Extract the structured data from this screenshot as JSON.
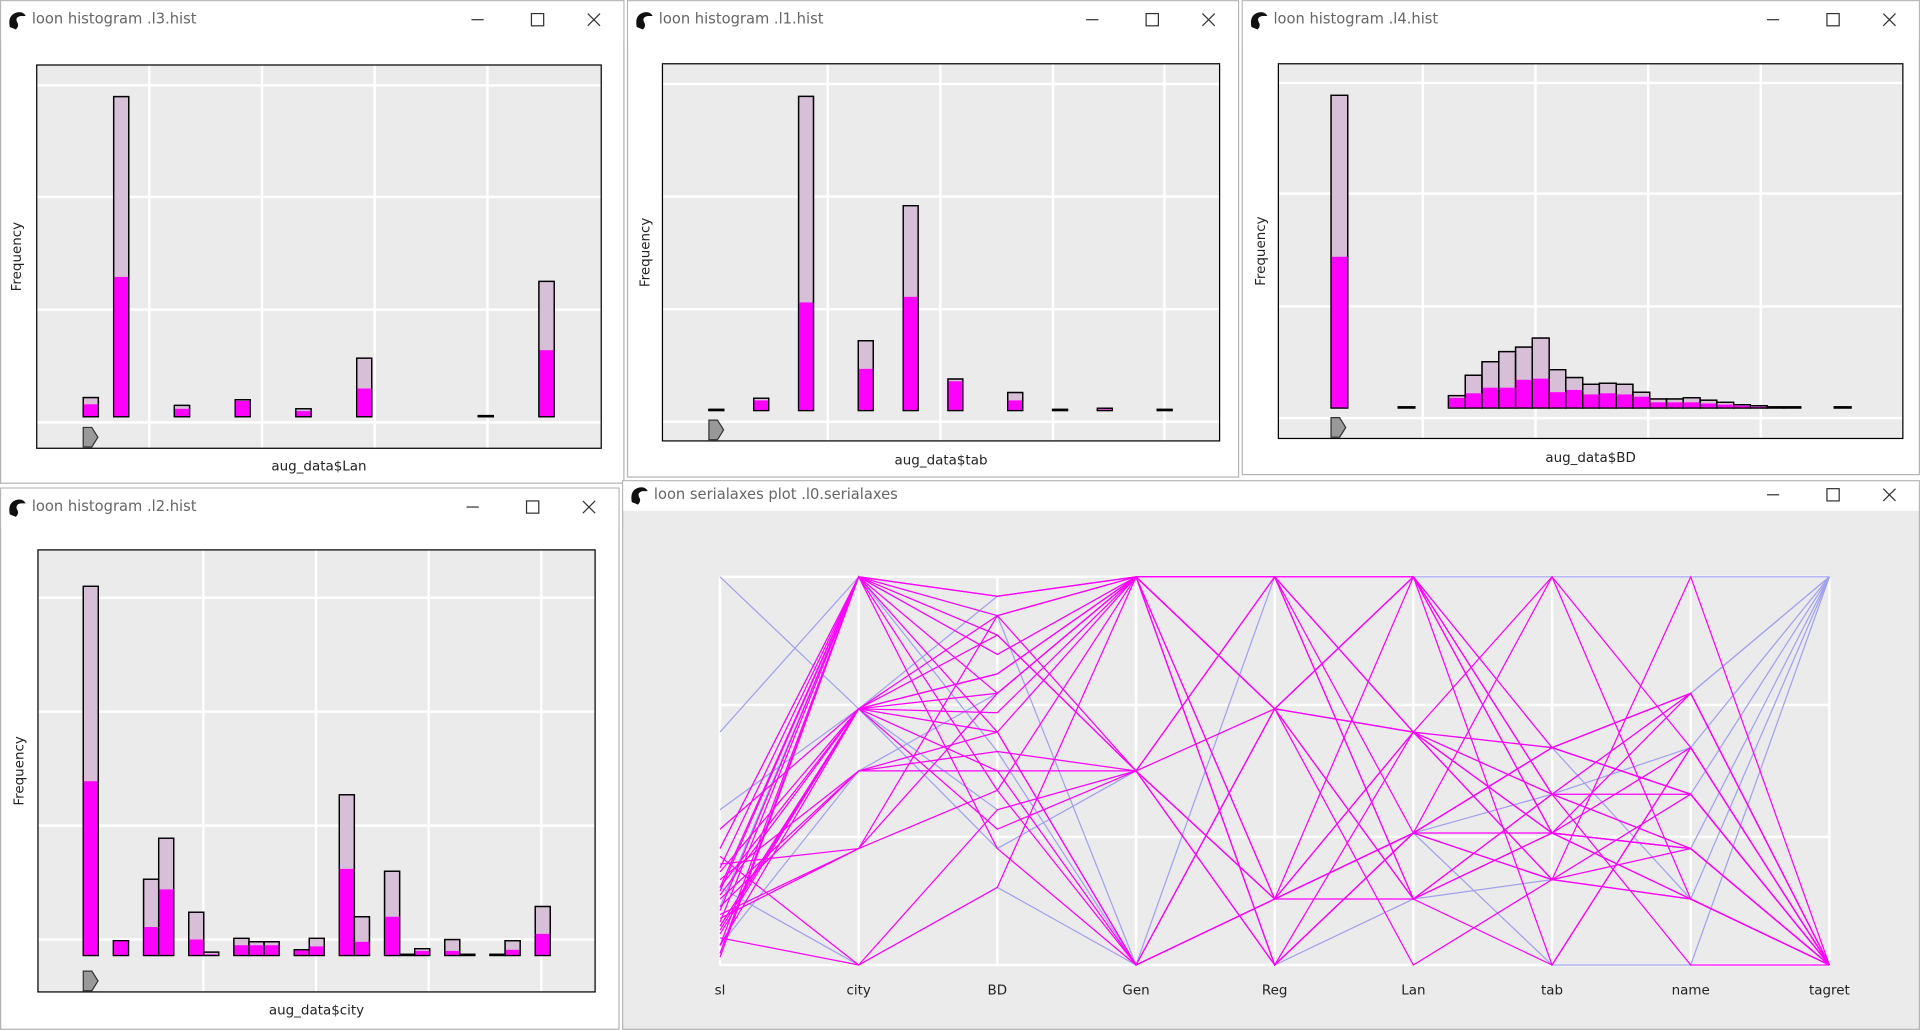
{
  "windows": [
    {
      "title": "loon histogram .l3.hist",
      "chart_data": {
        "type": "histogram",
        "xlabel": "aug_data$Lan",
        "ylabel": "Frequency",
        "bins": [
          0,
          1,
          2,
          3,
          4,
          5,
          6,
          7,
          8,
          9,
          10,
          11,
          12,
          13,
          14,
          15,
          16,
          17,
          18,
          19,
          20,
          21,
          22,
          23,
          24,
          25,
          26,
          27,
          28,
          29,
          30,
          31
        ],
        "series": [
          {
            "color": "#d8bfd8",
            "values": [
              17,
              0,
              284,
              0,
              0,
              0,
              10,
              0,
              0,
              0,
              15,
              0,
              0,
              0,
              7,
              0,
              0,
              0,
              52,
              0,
              0,
              0,
              0,
              0,
              0,
              0,
              1,
              0,
              0,
              0,
              120
            ]
          },
          {
            "color": "#ff00ff",
            "values": [
              11,
              0,
              124,
              0,
              0,
              0,
              7,
              0,
              0,
              0,
              14,
              0,
              0,
              0,
              5,
              0,
              0,
              0,
              25,
              0,
              0,
              0,
              0,
              0,
              0,
              0,
              0,
              0,
              0,
              0,
              59
            ]
          }
        ],
        "xlim": [
          -3.06,
          34.1
        ],
        "xticks": [
          4.35,
          11.77,
          19.19,
          26.61
        ],
        "ylim": [
          -28,
          312
        ],
        "yticks": [
          -5,
          95,
          195,
          294
        ],
        "grid": true
      }
    },
    {
      "title": "loon histogram .l1.hist",
      "chart_data": {
        "type": "histogram",
        "xlabel": "aug_data$tab",
        "ylabel": "Frequency",
        "bins": [
          0,
          1,
          2,
          3,
          4,
          5,
          6,
          7,
          8,
          9,
          10,
          11,
          12,
          13,
          14,
          15,
          16,
          17,
          18,
          19,
          20,
          21,
          22,
          23,
          24,
          25,
          26,
          27,
          28,
          29,
          30,
          31
        ],
        "series": [
          {
            "color": "#d8bfd8",
            "values": [
              1,
              0,
              0,
              11,
              0,
              0,
              279,
              0,
              0,
              0,
              62,
              0,
              0,
              182,
              0,
              0,
              28,
              0,
              0,
              0,
              16,
              0,
              0,
              1,
              0,
              0,
              2,
              0,
              0,
              0,
              1
            ]
          },
          {
            "color": "#ff00ff",
            "values": [
              0,
              0,
              0,
              9,
              0,
              0,
              96,
              0,
              0,
              0,
              37,
              0,
              0,
              101,
              0,
              0,
              26,
              0,
              0,
              0,
              9,
              0,
              0,
              0,
              0,
              0,
              1,
              0,
              0,
              0,
              0
            ]
          }
        ],
        "xlim": [
          -3.11,
          34.18
        ],
        "xticks": [
          7.95,
          15.49,
          23.03,
          30.49
        ],
        "ylim": [
          -27,
          308
        ],
        "yticks": [
          -10,
          90,
          190,
          290
        ],
        "grid": true
      }
    },
    {
      "title": "loon histogram .l4.hist",
      "chart_data": {
        "type": "histogram",
        "xlabel": "aug_data$BD",
        "ylabel": "Frequency",
        "bins": [
          0,
          1,
          2,
          3,
          4,
          5,
          6,
          7,
          8,
          9,
          10,
          11,
          12,
          13,
          14,
          15,
          16,
          17,
          18,
          19,
          20,
          21,
          22,
          23,
          24,
          25,
          26,
          27,
          28,
          29,
          30,
          31
        ],
        "series": [
          {
            "color": "#d8bfd8",
            "values": [
              277,
              0,
              0,
              0,
              1,
              0,
              0,
              11,
              29,
              41,
              50,
              54,
              62,
              34,
              27,
              21,
              22,
              21,
              14,
              8,
              8,
              9,
              7,
              5,
              3,
              2,
              1,
              1,
              0,
              0,
              1
            ]
          },
          {
            "color": "#ff00ff",
            "values": [
              134,
              0,
              0,
              0,
              0,
              0,
              0,
              9,
              13,
              18,
              18,
              25,
              26,
              14,
              16,
              12,
              13,
              12,
              10,
              5,
              5,
              5,
              4,
              3,
              2,
              1,
              1,
              0,
              0,
              0,
              0
            ]
          }
        ],
        "xlim": [
          -3.14,
          34.09
        ],
        "xticks": [
          5.47,
          12.19,
          18.91,
          25.62
        ],
        "ylim": [
          -27,
          305
        ],
        "yticks": [
          -9,
          90,
          190,
          288
        ],
        "grid": true
      }
    },
    {
      "title": "loon histogram .l2.hist",
      "chart_data": {
        "type": "histogram",
        "xlabel": "aug_data$city",
        "ylabel": "Frequency",
        "bins": [
          0,
          1,
          2,
          3,
          4,
          5,
          6,
          7,
          8,
          9,
          10,
          11,
          12,
          13,
          14,
          15,
          16,
          17,
          18,
          19,
          20,
          21,
          22,
          23,
          24,
          25,
          26,
          27,
          28,
          29,
          30,
          31
        ],
        "series": [
          {
            "color": "#d8bfd8",
            "values": [
              324,
              0,
              13,
              0,
              67,
              103,
              0,
              38,
              3,
              0,
              15,
              12,
              12,
              0,
              5,
              15,
              0,
              141,
              34,
              0,
              74,
              1,
              6,
              0,
              14,
              1,
              0,
              1,
              13,
              0,
              43
            ]
          },
          {
            "color": "#ff00ff",
            "values": [
              153,
              0,
              13,
              0,
              25,
              58,
              0,
              14,
              1,
              0,
              9,
              9,
              9,
              0,
              5,
              8,
              0,
              76,
              12,
              0,
              34,
              0,
              4,
              0,
              4,
              0,
              0,
              0,
              5,
              0,
              19
            ]
          }
        ],
        "xlim": [
          -3.01,
          33.98
        ],
        "xticks": [
          7.97,
          15.45,
          22.93,
          30.41
        ],
        "ylim": [
          -32,
          356
        ],
        "yticks": [
          14,
          114,
          214,
          314
        ],
        "grid": true
      }
    },
    {
      "title": "loon serialaxes plot .l0.serialaxes",
      "chart_data": {
        "type": "serialaxes",
        "axes": [
          "sl",
          "city",
          "BD",
          "Gen",
          "Reg",
          "Lan",
          "tab",
          "name",
          "tagret"
        ],
        "ylim": [
          0,
          1
        ],
        "yticks": [
          0,
          0.33,
          0.67,
          1
        ],
        "grid": true,
        "series": [
          {
            "color": "#a0a0f0",
            "values": [
              1,
              0.66,
              0.95,
              1,
              1,
              1,
              1,
              1,
              1
            ]
          },
          {
            "color": "#a0a0f0",
            "values": [
              0.3,
              1,
              0.55,
              0,
              0.66,
              0.6,
              0.56,
              0.7,
              1
            ]
          },
          {
            "color": "#a0a0f0",
            "values": [
              0.1,
              0.66,
              0.4,
              0.5,
              0.17,
              0.34,
              0.44,
              0.56,
              1
            ]
          },
          {
            "color": "#a0a0f0",
            "values": [
              0.6,
              1,
              0.8,
              1,
              0,
              0.17,
              0.22,
              0.44,
              1
            ]
          },
          {
            "color": "#a0a0f0",
            "values": [
              0.2,
              0,
              0.2,
              0,
              1,
              0.6,
              0.34,
              0.3,
              1
            ]
          },
          {
            "color": "#a0a0f0",
            "values": [
              0.05,
              0.5,
              0.7,
              1,
              0.66,
              1,
              0.56,
              0.17,
              1
            ]
          },
          {
            "color": "#a0a0f0",
            "values": [
              0.4,
              0.66,
              0.3,
              0.5,
              0.17,
              0.34,
              0,
              0,
              1
            ]
          },
          {
            "color": "#a0a0f0",
            "values": [
              0.15,
              1,
              0.9,
              0,
              0.66,
              0.6,
              0.44,
              0.7,
              1
            ]
          },
          {
            "color": "#ff00ff",
            "values": [
              0.05,
              1,
              0.9,
              1,
              1,
              1,
              0.56,
              0.44,
              0
            ]
          },
          {
            "color": "#ff00ff",
            "values": [
              0.1,
              0.66,
              0.7,
              1,
              0.66,
              0.6,
              0.34,
              0.56,
              0
            ]
          },
          {
            "color": "#ff00ff",
            "values": [
              0.2,
              1,
              0.85,
              0.5,
              0.17,
              0.34,
              0.22,
              0.3,
              0
            ]
          },
          {
            "color": "#ff00ff",
            "values": [
              0.15,
              0.5,
              0.6,
              1,
              1,
              0.17,
              0.44,
              0.7,
              0
            ]
          },
          {
            "color": "#ff00ff",
            "values": [
              0.08,
              0.66,
              0.5,
              0.5,
              0,
              0.6,
              1,
              0.17,
              0
            ]
          },
          {
            "color": "#ff00ff",
            "values": [
              0.25,
              1,
              0.95,
              1,
              0.66,
              1,
              0.34,
              0.3,
              0
            ]
          },
          {
            "color": "#ff00ff",
            "values": [
              0.12,
              0.3,
              0.45,
              0,
              0.17,
              0.34,
              0.56,
              0.44,
              0
            ]
          },
          {
            "color": "#ff00ff",
            "values": [
              0.18,
              0.66,
              0.75,
              1,
              1,
              0.6,
              0.22,
              1,
              0
            ]
          },
          {
            "color": "#ff00ff",
            "values": [
              0.03,
              1,
              0.3,
              0,
              0.66,
              0.17,
              0,
              0.56,
              0
            ]
          },
          {
            "color": "#ff00ff",
            "values": [
              0.22,
              0.5,
              0.55,
              0.5,
              0.17,
              1,
              0.44,
              0.3,
              0
            ]
          },
          {
            "color": "#ff00ff",
            "values": [
              0.1,
              0.66,
              0.65,
              1,
              0,
              0.34,
              0.34,
              0.17,
              0
            ]
          },
          {
            "color": "#ff00ff",
            "values": [
              0.3,
              1,
              0.8,
              1,
              0.17,
              0.6,
              0.56,
              0.7,
              0
            ]
          },
          {
            "color": "#ff00ff",
            "values": [
              0.07,
              0,
              0.4,
              0.5,
              0.66,
              0,
              0.22,
              0.44,
              0
            ]
          },
          {
            "color": "#ff00ff",
            "values": [
              0.2,
              0.66,
              0.9,
              1,
              1,
              0.34,
              1,
              0.56,
              0
            ]
          },
          {
            "color": "#ff00ff",
            "values": [
              0.14,
              1,
              0.6,
              0,
              0.17,
              0.17,
              0.34,
              0.3,
              0
            ]
          },
          {
            "color": "#ff00ff",
            "values": [
              0.26,
              0.3,
              0.7,
              1,
              0.66,
              1,
              0.44,
              0,
              0
            ]
          },
          {
            "color": "#ff00ff",
            "values": [
              0.05,
              0.66,
              0.35,
              0.5,
              1,
              0.6,
              0.22,
              0.17,
              0
            ]
          },
          {
            "color": "#ff00ff",
            "values": [
              0.11,
              1,
              0.95,
              1,
              0,
              0.34,
              0.56,
              0.44,
              0
            ]
          },
          {
            "color": "#ff00ff",
            "values": [
              0.17,
              0.5,
              0.5,
              0,
              0.17,
              0.6,
              0.34,
              0.7,
              0
            ]
          },
          {
            "color": "#ff00ff",
            "values": [
              0.28,
              0,
              0.2,
              1,
              0.66,
              0.17,
              0.44,
              0.3,
              0
            ]
          },
          {
            "color": "#ff00ff",
            "values": [
              0.09,
              0.66,
              0.85,
              0.5,
              1,
              1,
              0,
              0.56,
              0
            ]
          },
          {
            "color": "#ff00ff",
            "values": [
              0.19,
              1,
              0.7,
              1,
              0.17,
              0.34,
              0.22,
              0.17,
              0
            ]
          },
          {
            "color": "#ff00ff",
            "values": [
              0.35,
              0.66,
              0.6,
              0,
              0.66,
              0.6,
              0.44,
              0.44,
              0
            ]
          },
          {
            "color": "#ff00ff",
            "values": [
              0.02,
              1,
              0.45,
              1,
              1,
              0.17,
              0.34,
              0.3,
              0
            ]
          },
          {
            "color": "#ff00ff",
            "values": [
              0.13,
              0.3,
              0.9,
              0.5,
              0,
              0.34,
              0.56,
              0.7,
              0
            ]
          },
          {
            "color": "#ff00ff",
            "values": [
              0.24,
              0.66,
              0.75,
              1,
              0.66,
              1,
              0.34,
              0.17,
              0
            ]
          }
        ]
      }
    }
  ]
}
